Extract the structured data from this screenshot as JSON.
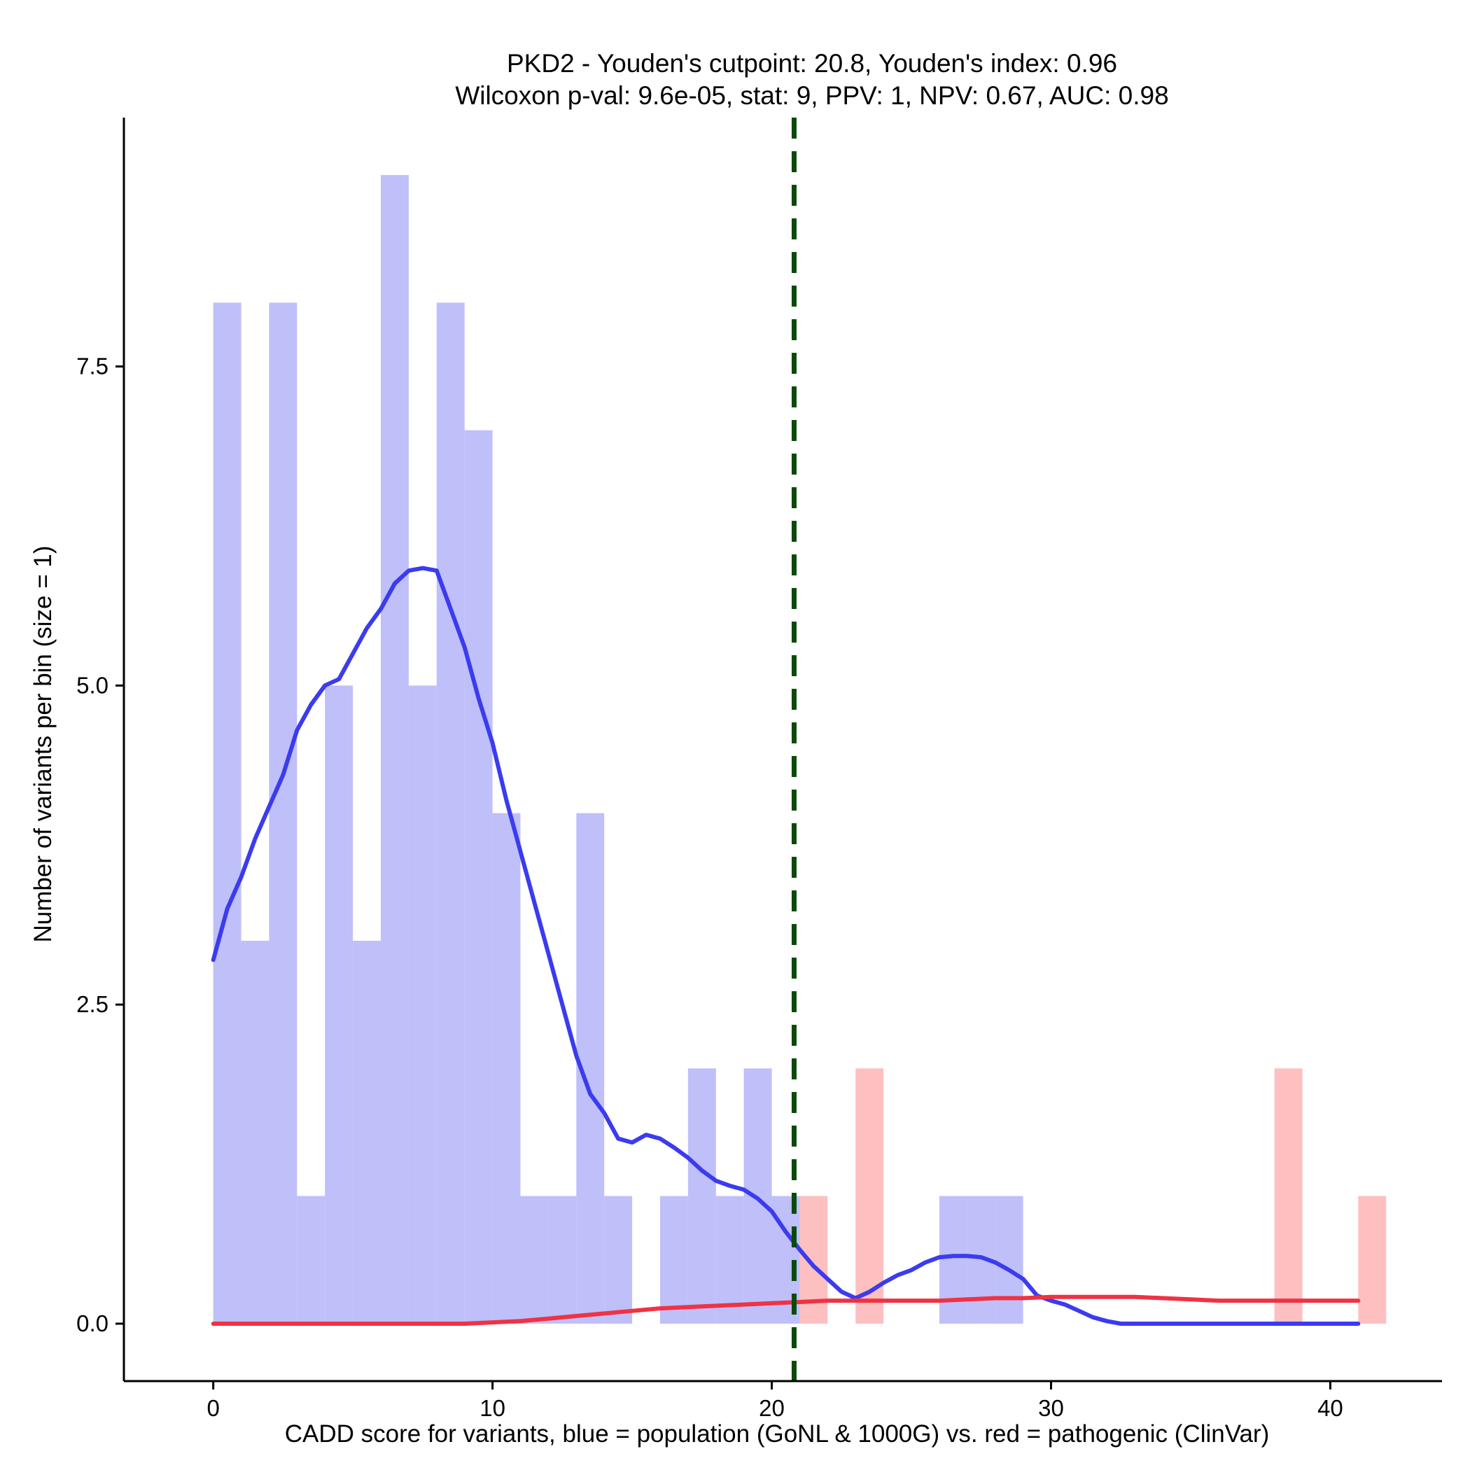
{
  "chart_data": {
    "type": "histogram",
    "title": "PKD2 - Youden's cutpoint: 20.8, Youden's index: 0.96",
    "subtitle": "Wilcoxon p-val: 9.6e-05, stat: 9, PPV: 1, NPV: 0.67, AUC: 0.98",
    "xlabel": "CADD score for variants, blue = population (GoNL & 1000G) vs. red = pathogenic (ClinVar)",
    "ylabel": "Number of variants per bin (size = 1)",
    "xlim": [
      -3.2,
      44.0
    ],
    "ylim": [
      -0.45,
      9.45
    ],
    "x_ticks": [
      0,
      10,
      20,
      30,
      40
    ],
    "x_tick_labels": [
      "0",
      "10",
      "20",
      "30",
      "40"
    ],
    "y_ticks": [
      0.0,
      2.5,
      5.0,
      7.5
    ],
    "y_tick_labels": [
      "0.0",
      "2.5",
      "5.0",
      "7.5"
    ],
    "bin_width": 1,
    "cutpoint": 20.8,
    "series": [
      {
        "name": "population (GoNL & 1000G)",
        "color": "#bfbffa",
        "bins": [
          {
            "x": 0,
            "count": 8
          },
          {
            "x": 1,
            "count": 3
          },
          {
            "x": 2,
            "count": 8
          },
          {
            "x": 3,
            "count": 1
          },
          {
            "x": 4,
            "count": 5
          },
          {
            "x": 5,
            "count": 3
          },
          {
            "x": 6,
            "count": 9
          },
          {
            "x": 7,
            "count": 5
          },
          {
            "x": 8,
            "count": 8
          },
          {
            "x": 9,
            "count": 7
          },
          {
            "x": 10,
            "count": 4
          },
          {
            "x": 11,
            "count": 1
          },
          {
            "x": 12,
            "count": 1
          },
          {
            "x": 13,
            "count": 4
          },
          {
            "x": 14,
            "count": 1
          },
          {
            "x": 16,
            "count": 1
          },
          {
            "x": 17,
            "count": 2
          },
          {
            "x": 18,
            "count": 1
          },
          {
            "x": 19,
            "count": 2
          },
          {
            "x": 20,
            "count": 1
          },
          {
            "x": 26,
            "count": 1
          },
          {
            "x": 27,
            "count": 1
          },
          {
            "x": 28,
            "count": 1
          }
        ]
      },
      {
        "name": "pathogenic (ClinVar)",
        "color": "#fdbfbf",
        "bins": [
          {
            "x": 21,
            "count": 1
          },
          {
            "x": 23,
            "count": 2
          },
          {
            "x": 38,
            "count": 2
          },
          {
            "x": 41,
            "count": 1
          }
        ]
      }
    ],
    "density_curves": [
      {
        "name": "population density",
        "color": "#3b3bef",
        "x": [
          0,
          0.5,
          1,
          1.5,
          2,
          2.5,
          3,
          3.5,
          4,
          4.5,
          5,
          5.5,
          6,
          6.5,
          7,
          7.5,
          8,
          8.5,
          9,
          9.5,
          10,
          10.5,
          11,
          11.5,
          12,
          12.5,
          13,
          13.5,
          14,
          14.5,
          15,
          15.5,
          16,
          16.5,
          17,
          17.5,
          18,
          18.5,
          19,
          19.5,
          20,
          20.5,
          21,
          21.5,
          22,
          22.5,
          23,
          23.5,
          24,
          24.5,
          25,
          25.5,
          26,
          26.5,
          27,
          27.5,
          28,
          28.5,
          29,
          29.5,
          30,
          30.5,
          31,
          31.5,
          32,
          32.5,
          33,
          34,
          36,
          38,
          41
        ],
        "y": [
          2.85,
          3.25,
          3.5,
          3.8,
          4.05,
          4.3,
          4.65,
          4.85,
          5.0,
          5.05,
          5.25,
          5.45,
          5.6,
          5.8,
          5.9,
          5.92,
          5.9,
          5.6,
          5.3,
          4.9,
          4.55,
          4.1,
          3.7,
          3.3,
          2.9,
          2.5,
          2.1,
          1.8,
          1.65,
          1.45,
          1.42,
          1.48,
          1.45,
          1.38,
          1.3,
          1.2,
          1.12,
          1.08,
          1.05,
          0.98,
          0.88,
          0.72,
          0.58,
          0.45,
          0.35,
          0.25,
          0.2,
          0.25,
          0.32,
          0.38,
          0.42,
          0.48,
          0.52,
          0.53,
          0.53,
          0.52,
          0.48,
          0.42,
          0.35,
          0.22,
          0.18,
          0.15,
          0.1,
          0.05,
          0.02,
          0.0,
          0.0,
          0.0,
          0.0,
          0.0,
          0.0
        ]
      },
      {
        "name": "pathogenic density",
        "color": "#ee3344",
        "x": [
          0,
          2,
          4,
          6,
          8,
          9,
          10,
          11,
          12,
          13,
          14,
          15,
          16,
          17,
          18,
          19,
          20,
          21,
          22,
          23,
          24,
          25,
          26,
          27,
          28,
          29,
          30,
          31,
          32,
          33,
          34,
          35,
          36,
          37,
          38,
          39,
          40,
          41
        ],
        "y": [
          0.0,
          0.0,
          0.0,
          0.0,
          0.0,
          0.0,
          0.01,
          0.02,
          0.04,
          0.06,
          0.08,
          0.1,
          0.12,
          0.13,
          0.14,
          0.15,
          0.16,
          0.17,
          0.18,
          0.18,
          0.18,
          0.18,
          0.18,
          0.19,
          0.2,
          0.2,
          0.21,
          0.21,
          0.21,
          0.21,
          0.2,
          0.19,
          0.18,
          0.18,
          0.18,
          0.18,
          0.18,
          0.18
        ]
      }
    ],
    "cutpoint_line_color": "#0b4a0b"
  }
}
